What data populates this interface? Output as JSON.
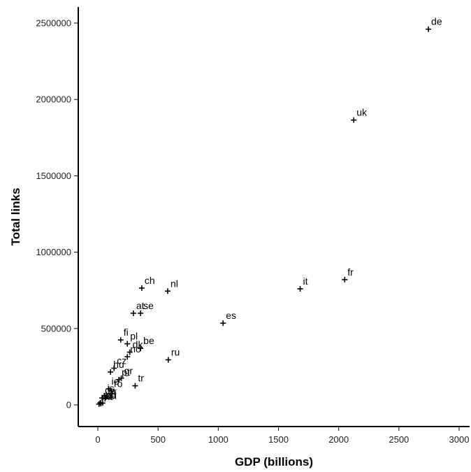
{
  "chart_data": {
    "type": "scatter",
    "title": "",
    "xlabel": "GDP (billions)",
    "ylabel": "Total links",
    "xlim": [
      -130,
      3100
    ],
    "ylim": [
      -110000,
      2700000
    ],
    "xticks": [
      "0",
      "500",
      "1000",
      "1500",
      "2000",
      "2500",
      "3000"
    ],
    "yticks": [
      "0",
      "500000",
      "1000000",
      "1500000",
      "2000000",
      "2500000"
    ],
    "grid": false,
    "legend": "none",
    "marker": "+",
    "points": [
      {
        "label": "de",
        "x": 2745,
        "y": 2460000
      },
      {
        "label": "uk",
        "x": 2125,
        "y": 1865000
      },
      {
        "label": "fr",
        "x": 2050,
        "y": 820000
      },
      {
        "label": "it",
        "x": 1680,
        "y": 760000
      },
      {
        "label": "es",
        "x": 1040,
        "y": 535000
      },
      {
        "label": "nl",
        "x": 580,
        "y": 745000
      },
      {
        "label": "ch",
        "x": 365,
        "y": 765000
      },
      {
        "label": "at",
        "x": 295,
        "y": 600000
      },
      {
        "label": "se",
        "x": 355,
        "y": 600000
      },
      {
        "label": "ru",
        "x": 585,
        "y": 295000
      },
      {
        "label": "fi",
        "x": 190,
        "y": 425000
      },
      {
        "label": "pl",
        "x": 245,
        "y": 400000
      },
      {
        "label": "be",
        "x": 355,
        "y": 370000
      },
      {
        "label": "no",
        "x": 245,
        "y": 315000
      },
      {
        "label": "dk",
        "x": 265,
        "y": 345000
      },
      {
        "label": "hu",
        "x": 105,
        "y": 215000
      },
      {
        "label": "cz",
        "x": 135,
        "y": 240000
      },
      {
        "label": "gr",
        "x": 195,
        "y": 175000
      },
      {
        "label": "tr",
        "x": 310,
        "y": 125000
      },
      {
        "label": "pt",
        "x": 175,
        "y": 165000
      },
      {
        "label": "ro",
        "x": 110,
        "y": 90000
      },
      {
        "label": "ie",
        "x": 90,
        "y": 105000
      },
      {
        "label": "is",
        "x": 55,
        "y": 60000
      },
      {
        "label": "cy",
        "x": 35,
        "y": 45000
      },
      {
        "label": "hr",
        "x": 60,
        "y": 40000
      },
      {
        "label": "md",
        "x": 20,
        "y": 15000
      },
      {
        "label": "mt",
        "x": 10,
        "y": 5000
      },
      {
        "label": "al",
        "x": 25,
        "y": 8000
      },
      {
        "label": "ba",
        "x": 40,
        "y": 12000
      }
    ]
  }
}
